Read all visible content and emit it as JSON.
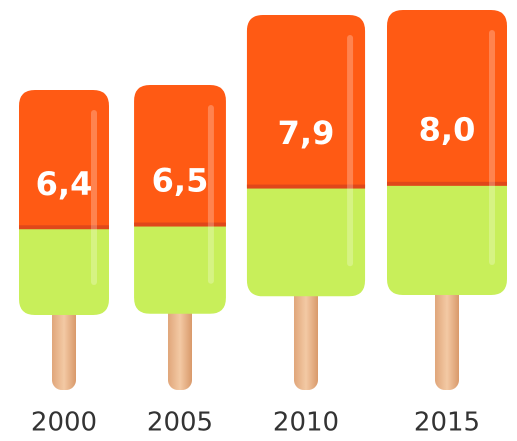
{
  "chart_data": {
    "type": "popsicle",
    "categories": [
      "2000",
      "2005",
      "2010",
      "2015"
    ],
    "values": [
      6.4,
      6.5,
      7.9,
      8.0
    ],
    "value_labels": [
      "6,4",
      "6,5",
      "7,9",
      "8,0"
    ],
    "color": "#ff5a14"
  }
}
